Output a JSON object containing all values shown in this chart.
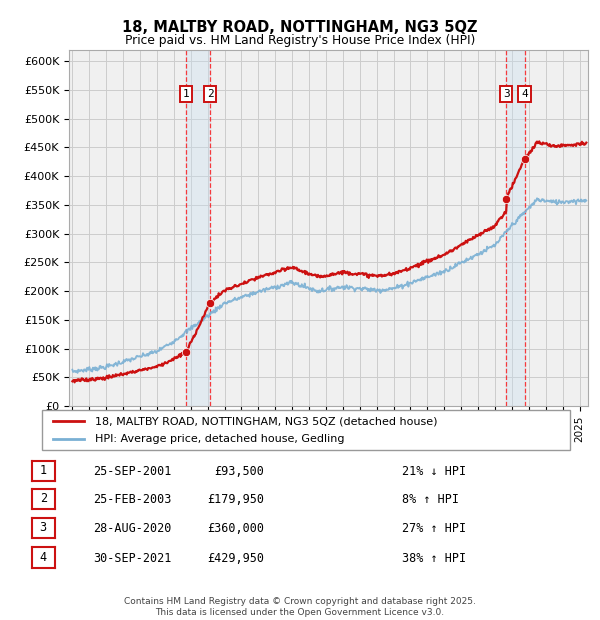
{
  "title": "18, MALTBY ROAD, NOTTINGHAM, NG3 5QZ",
  "subtitle": "Price paid vs. HM Land Registry's House Price Index (HPI)",
  "footer": "Contains HM Land Registry data © Crown copyright and database right 2025.\nThis data is licensed under the Open Government Licence v3.0.",
  "legend_line1": "18, MALTBY ROAD, NOTTINGHAM, NG3 5QZ (detached house)",
  "legend_line2": "HPI: Average price, detached house, Gedling",
  "transactions": [
    {
      "num": "1",
      "date": "25-SEP-2001",
      "price": "£93,500",
      "change": "21% ↓ HPI",
      "year": 2001.73,
      "price_val": 93500
    },
    {
      "num": "2",
      "date": "25-FEB-2003",
      "price": "£179,950",
      "change": "8% ↑ HPI",
      "year": 2003.15,
      "price_val": 179950
    },
    {
      "num": "3",
      "date": "28-AUG-2020",
      "price": "£360,000",
      "change": "27% ↑ HPI",
      "year": 2020.66,
      "price_val": 360000
    },
    {
      "num": "4",
      "date": "30-SEP-2021",
      "price": "£429,950",
      "change": "38% ↑ HPI",
      "year": 2021.75,
      "price_val": 429950
    }
  ],
  "hpi_color": "#7ab0d4",
  "price_color": "#cc1111",
  "background_color": "#f0f0f0",
  "grid_color": "#cccccc",
  "ylim": [
    0,
    620000
  ],
  "yticks": [
    0,
    50000,
    100000,
    150000,
    200000,
    250000,
    300000,
    350000,
    400000,
    450000,
    500000,
    550000,
    600000
  ],
  "ytick_labels": [
    "£0",
    "£50K",
    "£100K",
    "£150K",
    "£200K",
    "£250K",
    "£300K",
    "£350K",
    "£400K",
    "£450K",
    "£500K",
    "£550K",
    "£600K"
  ],
  "xmin": 1994.8,
  "xmax": 2025.5,
  "span_color": "#c8dff0",
  "span_alpha": 0.35
}
